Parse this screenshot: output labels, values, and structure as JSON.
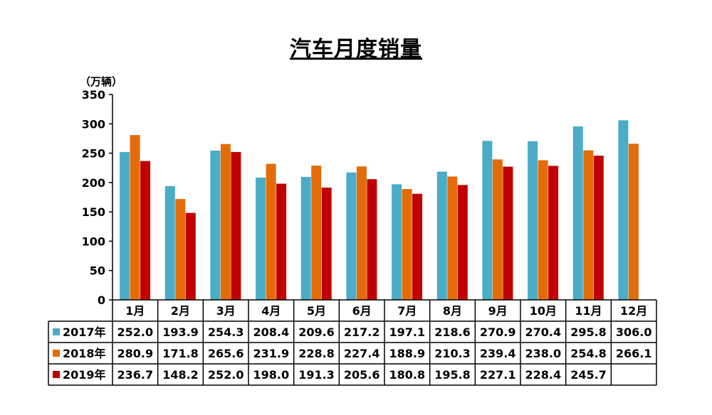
{
  "chart_data": {
    "type": "bar",
    "title": "汽车月度销量",
    "ylabel": "（万辆）",
    "ylim": [
      0,
      350
    ],
    "yticks": [
      0,
      50,
      100,
      150,
      200,
      250,
      300,
      350
    ],
    "categories": [
      "1月",
      "2月",
      "3月",
      "4月",
      "5月",
      "6月",
      "7月",
      "8月",
      "9月",
      "10月",
      "11月",
      "12月"
    ],
    "series": [
      {
        "name": "2017年",
        "color": "#4BACC6",
        "values": [
          252.0,
          193.9,
          254.3,
          208.4,
          209.6,
          217.2,
          197.1,
          218.6,
          270.9,
          270.4,
          295.8,
          306.0
        ],
        "labels": [
          "252.0",
          "193.9",
          "254.3",
          "208.4",
          "209.6",
          "217.2",
          "197.1",
          "218.6",
          "270.9",
          "270.4",
          "295.8",
          "306.0"
        ]
      },
      {
        "name": "2018年",
        "color": "#E36C0A",
        "values": [
          280.9,
          171.8,
          265.6,
          231.9,
          228.8,
          227.4,
          188.9,
          210.3,
          239.4,
          238.0,
          254.8,
          266.1
        ],
        "labels": [
          "280.9",
          "171.8",
          "265.6",
          "231.9",
          "228.8",
          "227.4",
          "188.9",
          "210.3",
          "239.4",
          "238.0",
          "254.8",
          "266.1"
        ]
      },
      {
        "name": "2019年",
        "color": "#C00000",
        "values": [
          236.7,
          148.2,
          252.0,
          198.0,
          191.3,
          205.6,
          180.8,
          195.8,
          227.1,
          228.4,
          245.7,
          null
        ],
        "labels": [
          "236.7",
          "148.2",
          "252.0",
          "198.0",
          "191.3",
          "205.6",
          "180.8",
          "195.8",
          "227.1",
          "228.4",
          "245.7",
          ""
        ]
      }
    ],
    "legend": "data-table-left",
    "grid": false
  }
}
